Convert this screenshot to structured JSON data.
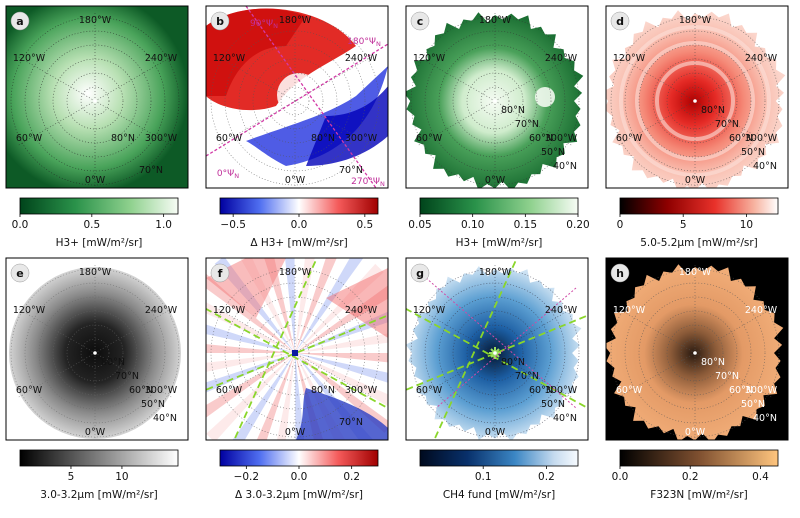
{
  "chart_data": [
    {
      "type": "heatmap",
      "panel": "a",
      "colorbar": {
        "ticks": [
          "0.0",
          "0.5",
          "1.0"
        ],
        "min": 0.0,
        "max": 1.1,
        "label": "H$_3^+$ [mW/m$^2$/sr]",
        "label_display": "H3+ [mW/m²/sr]",
        "cmap": "greens"
      },
      "lon_labels": [
        "180°W",
        "120°W",
        "240°W",
        "60°W",
        "300°W",
        "0°W"
      ],
      "lat_labels": [
        "80°N",
        "70°N"
      ],
      "extra_labels": [],
      "background": "#0b4a1e"
    },
    {
      "type": "heatmap",
      "panel": "b",
      "colorbar": {
        "ticks": [
          "−0.5",
          "0.0",
          "0.5"
        ],
        "min": -0.6,
        "max": 0.6,
        "label": "Δ H$_3^+$ [mW/m$^2$/sr]",
        "label_display": "Δ H3+ [mW/m²/sr]",
        "cmap": "bwr"
      },
      "lon_labels": [
        "180°W",
        "120°W",
        "240°W",
        "60°W",
        "300°W",
        "0°W"
      ],
      "lat_labels": [
        "80°N",
        "70°N"
      ],
      "extra_labels": [
        "90°Ψ_N",
        "180°Ψ_N",
        "0°Ψ_N",
        "270°Ψ_N"
      ],
      "background": "#ffffff"
    },
    {
      "type": "heatmap",
      "panel": "c",
      "colorbar": {
        "ticks": [
          "0.05",
          "0.10",
          "0.15",
          "0.20"
        ],
        "min": 0.05,
        "max": 0.2,
        "label": "H$_3^+$ [mW/m$^2$/sr]",
        "label_display": "H3+ [mW/m²/sr]",
        "cmap": "greens"
      },
      "lon_labels": [
        "180°W",
        "120°W",
        "240°W",
        "60°W",
        "300°W",
        "0°W"
      ],
      "lat_labels": [
        "80°N",
        "70°N",
        "60°N",
        "50°N",
        "40°N"
      ],
      "extra_labels": [],
      "background": "#ffffff"
    },
    {
      "type": "heatmap",
      "panel": "d",
      "colorbar": {
        "ticks": [
          "0",
          "5",
          "10"
        ],
        "min": 0,
        "max": 12.5,
        "label": "5.0-5.2μm [mW/m$^2$/sr]",
        "label_display": "5.0-5.2μm [mW/m²/sr]",
        "cmap": "reds"
      },
      "lon_labels": [
        "180°W",
        "120°W",
        "240°W",
        "60°W",
        "300°W",
        "0°W"
      ],
      "lat_labels": [
        "80°N",
        "70°N",
        "60°N",
        "50°N",
        "40°N"
      ],
      "extra_labels": [],
      "background": "#ffffff"
    },
    {
      "type": "heatmap",
      "panel": "e",
      "colorbar": {
        "ticks": [
          "5",
          "10"
        ],
        "min": 0,
        "max": 15.5,
        "label": "3.0-3.2μm [mW/m$^2$/sr]",
        "label_display": "3.0-3.2μm [mW/m²/sr]",
        "cmap": "greys"
      },
      "lon_labels": [
        "180°W",
        "120°W",
        "240°W",
        "60°W",
        "300°W",
        "0°W"
      ],
      "lat_labels": [
        "80°N",
        "70°N",
        "60°N",
        "50°N",
        "40°N"
      ],
      "extra_labels": [],
      "background": "#ffffff"
    },
    {
      "type": "heatmap",
      "panel": "f",
      "colorbar": {
        "ticks": [
          "−0.2",
          "0.0",
          "0.2"
        ],
        "min": -0.3,
        "max": 0.3,
        "label": "Δ 3.0-3.2μm [mW/m$^2$/sr]",
        "label_display": "Δ 3.0-3.2μm [mW/m²/sr]",
        "cmap": "bwr"
      },
      "lon_labels": [
        "180°W",
        "120°W",
        "240°W",
        "60°W",
        "300°W",
        "0°W"
      ],
      "lat_labels": [
        "80°N",
        "70°N"
      ],
      "extra_labels": [],
      "background": "#ffffff"
    },
    {
      "type": "heatmap",
      "panel": "g",
      "colorbar": {
        "ticks": [
          "0.1",
          "0.2"
        ],
        "min": 0,
        "max": 0.25,
        "label": "CH$_4$ fund [mW/m$^2$/sr]",
        "label_display": "CH4 fund [mW/m²/sr]",
        "cmap": "blues"
      },
      "lon_labels": [
        "180°W",
        "120°W",
        "240°W",
        "60°W",
        "300°W",
        "0°W"
      ],
      "lat_labels": [
        "80°N",
        "70°N",
        "60°N",
        "50°N",
        "40°N"
      ],
      "extra_labels": [],
      "background": "#ffffff"
    },
    {
      "type": "heatmap",
      "panel": "h",
      "colorbar": {
        "ticks": [
          "0.0",
          "0.2",
          "0.4"
        ],
        "min": 0,
        "max": 0.45,
        "label": "F323N [mW/m$^2$/sr]",
        "label_display": "F323N [mW/m²/sr]",
        "cmap": "copper"
      },
      "lon_labels": [
        "180°W",
        "120°W",
        "240°W",
        "60°W",
        "300°W",
        "0°W"
      ],
      "lat_labels": [
        "80°N",
        "70°N",
        "60°N",
        "50°N",
        "40°N"
      ],
      "extra_labels": [],
      "background": "#000000"
    }
  ]
}
